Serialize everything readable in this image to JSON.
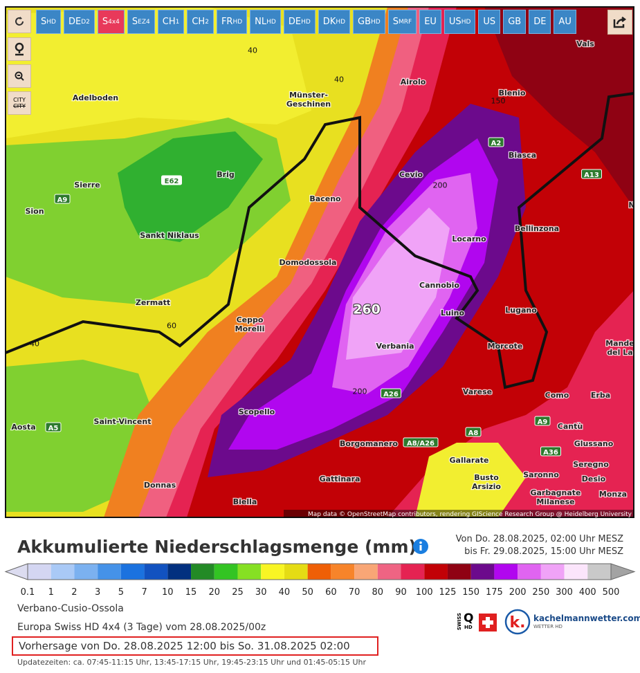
{
  "toolbar": [
    {
      "main": "S",
      "sub": "HD"
    },
    {
      "main": "DE",
      "sub": "D2"
    },
    {
      "main": "S",
      "sub": "4x4"
    },
    {
      "main": "S",
      "sub": "EZ4"
    },
    {
      "main": "CH",
      "sub": "1"
    },
    {
      "main": "CH",
      "sub": "2"
    },
    {
      "main": "FR",
      "sub": "HD"
    },
    {
      "main": "NL",
      "sub": "HD"
    },
    {
      "main": "DE",
      "sub": "HD"
    },
    {
      "main": "DK",
      "sub": "HD"
    },
    {
      "main": "GB",
      "sub": "HD"
    },
    {
      "main": "S",
      "sub": "MRF"
    },
    {
      "main": "EU"
    },
    {
      "main": "US",
      "sub": "HD"
    },
    {
      "main": "US"
    },
    {
      "main": "GB"
    },
    {
      "main": "DE"
    },
    {
      "main": "AU"
    }
  ],
  "active_button": 2,
  "city_button": "CITY",
  "map": {
    "places": [
      [
        "Vals"
      ],
      [
        "Airolo"
      ],
      [
        "Blenio"
      ],
      [
        "Adelboden"
      ],
      [
        "Münster-",
        "Geschinen"
      ],
      [
        "Biasca"
      ],
      [
        "Cevio"
      ],
      [
        "Brig"
      ],
      [
        "Sierre"
      ],
      [
        "Sion"
      ],
      [
        "Baceno"
      ],
      [
        "Bellinzona"
      ],
      [
        "Sankt Niklaus"
      ],
      [
        "Locarno"
      ],
      [
        "Domodossola"
      ],
      [
        "Cannobio"
      ],
      [
        "Zermatt"
      ],
      [
        "Lugano"
      ],
      [
        "Luino"
      ],
      [
        "Ceppo",
        "Morelli"
      ],
      [
        "Mande",
        "del La"
      ],
      [
        "Verbania"
      ],
      [
        "Morcote"
      ],
      [
        "Varese"
      ],
      [
        "Como"
      ],
      [
        "Erba"
      ],
      [
        "Scopello"
      ],
      [
        "Saint-Vincent"
      ],
      [
        "Aosta"
      ],
      [
        "Cantù"
      ],
      [
        "Borgomanero"
      ],
      [
        "Glussano"
      ],
      [
        "Gallarate"
      ],
      [
        "Seregno"
      ],
      [
        "Busto",
        "Arsizio"
      ],
      [
        "Saronno"
      ],
      [
        "Desio"
      ],
      [
        "Donnas"
      ],
      [
        "Gattinara"
      ],
      [
        "Garbagnate",
        "Milanese"
      ],
      [
        "Monza"
      ],
      [
        "Biella"
      ],
      [
        "N"
      ]
    ],
    "roads": [
      "E62",
      "A9",
      "A2",
      "A13",
      "A26",
      "A8/A26",
      "A8",
      "A9",
      "A36",
      "A5"
    ],
    "contours": [
      "40",
      "40",
      "150",
      "200",
      "260",
      "60",
      "40",
      "200"
    ],
    "attribution": "Map data © OpenStreetMap contributors, rendering GIScience Research Group @ Heidelberg University"
  },
  "header": {
    "title": "Akkumulierte Niederschlagsmenge (mm)",
    "period": [
      "Von Do. 28.08.2025, 02:00 Uhr MESZ",
      "bis Fr. 29.08.2025, 15:00 Uhr MESZ"
    ]
  },
  "legend": {
    "labels": [
      0.1,
      1,
      2,
      3,
      5,
      7,
      10,
      15,
      20,
      25,
      30,
      40,
      50,
      60,
      70,
      80,
      90,
      100,
      125,
      150,
      175,
      200,
      250,
      300,
      400,
      500
    ],
    "colors": [
      "#d4d6f2",
      "#a9c9f6",
      "#7bb1f0",
      "#4592e8",
      "#1b72df",
      "#1252c0",
      "#02307f",
      "#238a26",
      "#33c423",
      "#86e023",
      "#f8f524",
      "#e5dc14",
      "#ef5f06",
      "#f7842a",
      "#f8a676",
      "#ef6483",
      "#e52352",
      "#c20106",
      "#8f0213",
      "#6c0a8c",
      "#b106ef",
      "#e064f1",
      "#f0a3f7",
      "#fbe5fb",
      "#c9c9c9"
    ],
    "below_color": "#dcdcf0",
    "above_color": "#a3a3a3"
  },
  "info": {
    "region": "Verbano-Cusio-Ossola",
    "model": "Europa Swiss HD 4x4 (3 Tage) vom 28.08.2025/00z",
    "forecast": "Vorhersage von Do. 28.08.2025 12:00 bis So. 31.08.2025 02:00",
    "updates": "Updatezeiten: ca. 07:45-11:15 Uhr, 13:45-17:15 Uhr, 19:45-23:15 Uhr und 01:45-05:15 Uhr"
  },
  "logos": {
    "swiss_vertical": "SWISS",
    "swiss_hd": "HD",
    "kachelmann": "kachelmannwetter.com",
    "kachelmann_sub": "WETTER HD"
  }
}
